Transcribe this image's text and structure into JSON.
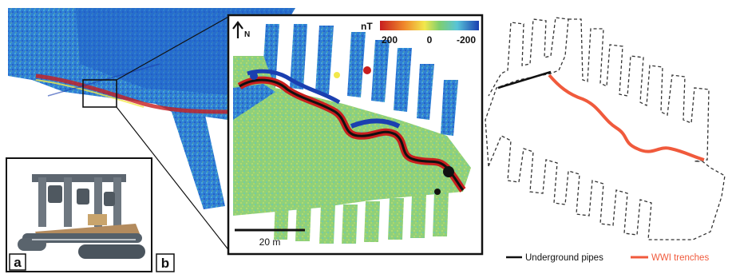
{
  "colors": {
    "mag_deep_blue": "#1b3fb0",
    "mag_blue": "#2f7fd6",
    "mag_cyan": "#58c4d8",
    "mag_green": "#7fcf6e",
    "mag_yellow": "#f2e84c",
    "mag_red": "#c81e1e",
    "trench_red": "#f05a3c",
    "pipe_black": "#111111",
    "outline_dash": "#333333"
  },
  "inset": {
    "north_label": "N",
    "colorbar_unit": "nT",
    "colorbar_ticks": [
      "200",
      "0",
      "-200"
    ],
    "scale_label": "20 m"
  },
  "panels": {
    "label_a": "a",
    "label_b": "b"
  },
  "legend": {
    "pipes_label": "Underground pipes",
    "trenches_label": "WWI trenches"
  },
  "icons": {
    "north": "north-arrow-icon"
  }
}
